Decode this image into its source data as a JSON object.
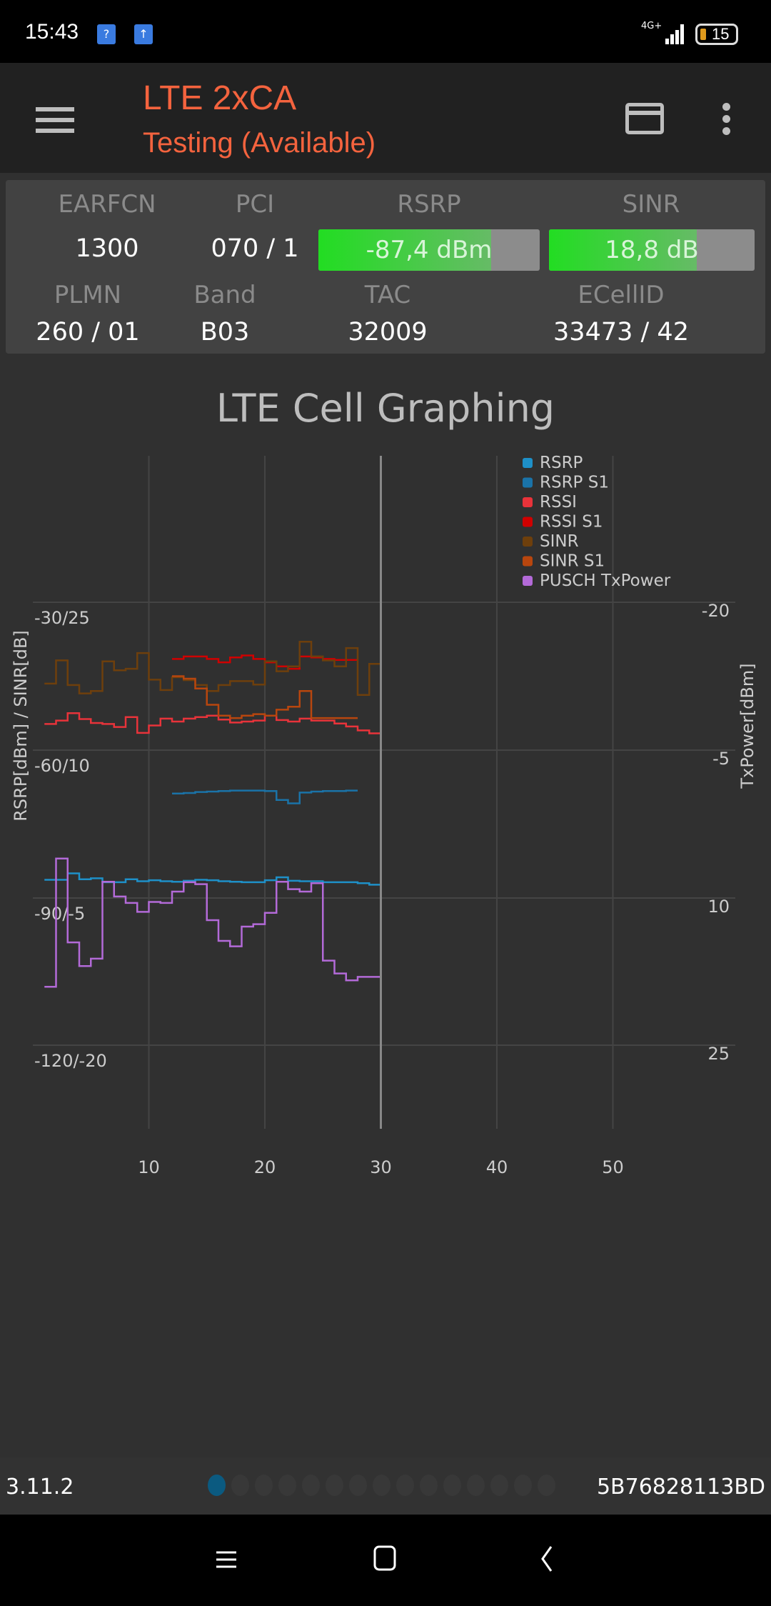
{
  "status": {
    "time": "15:43",
    "network": "4G+",
    "battery": "15"
  },
  "appbar": {
    "title": "LTE 2xCA",
    "subtitle": "Testing (Available)"
  },
  "cell": {
    "earfcn_label": "EARFCN",
    "earfcn": "1300",
    "pci_label": "PCI",
    "pci": "070 / 1",
    "rsrp_label": "RSRP",
    "rsrp": "-87,4 dBm",
    "rsrp_fill": 0.78,
    "sinr_label": "SINR",
    "sinr": "18,8 dB",
    "sinr_fill": 0.72,
    "plmn_label": "PLMN",
    "plmn": "260 / 01",
    "band_label": "Band",
    "band": "B03",
    "tac_label": "TAC",
    "tac": "32009",
    "ecellid_label": "ECellID",
    "ecellid": "33473 / 42"
  },
  "chart_data": {
    "type": "line",
    "title": "LTE Cell Graphing",
    "ylabel": "RSRP[dBm] / SINR[dB]",
    "y2label": "TxPower[dBm]",
    "xticks": [
      "10",
      "20",
      "30",
      "40",
      "50"
    ],
    "xlim": [
      0,
      59
    ],
    "yticks": [
      "-30/25",
      "-60/10",
      "-90/-5",
      "-120/-20"
    ],
    "y2ticks": [
      "-20",
      "-5",
      "10",
      "25"
    ],
    "grid": true,
    "legend": "top-right",
    "cursor_x": 30,
    "series": [
      {
        "name": "RSRP",
        "color": "#1e90c8",
        "axis": "rsrp",
        "x0": 1,
        "values": [
          -86.3,
          -86.3,
          -85.0,
          -86.2,
          -86.0,
          -86.8,
          -86.8,
          -86.2,
          -86.6,
          -86.4,
          -86.6,
          -86.7,
          -86.5,
          -86.3,
          -86.4,
          -86.6,
          -86.7,
          -86.8,
          -86.8,
          -86.4,
          -85.8,
          -86.5,
          -86.6,
          -86.6,
          -86.8,
          -86.8,
          -86.8,
          -87.0,
          -87.3,
          -87.6
        ]
      },
      {
        "name": "RSRP S1",
        "color": "#1a73a8",
        "axis": "rsrp",
        "x0": 12,
        "values": [
          -68.8,
          -68.7,
          -68.5,
          -68.4,
          -68.3,
          -68.2,
          -68.2,
          -68.2,
          -68.3,
          -70.1,
          -70.8,
          -68.6,
          -68.4,
          -68.3,
          -68.3,
          -68.2
        ]
      },
      {
        "name": "RSSI",
        "color": "#e8333a",
        "axis": "rsrp",
        "x0": 1,
        "values": [
          -54.7,
          -54,
          -52.5,
          -53.7,
          -54.5,
          -54.7,
          -55.3,
          -53.3,
          -56.5,
          -55,
          -53.6,
          -54.2,
          -53.6,
          -53.3,
          -53,
          -53.8,
          -54.4,
          -54.2,
          -54,
          -53,
          -53.9,
          -54.2,
          -53.6,
          -54,
          -54,
          -54.6,
          -55.2,
          -56,
          -56.6,
          -56.6
        ]
      },
      {
        "name": "RSSI S1",
        "color": "#d00000",
        "axis": "rsrp",
        "x0": 12,
        "values": [
          -41.5,
          -41,
          -41,
          -41.5,
          -42.2,
          -41.2,
          -40.8,
          -41.5,
          -42.2,
          -43,
          -43.5,
          -41,
          -41.2,
          -41.5,
          -41.7,
          -41.7
        ]
      },
      {
        "name": "SINR",
        "color": "#6e3f0c",
        "axis": "sinr",
        "x0": 1,
        "values": [
          16.75,
          19.1,
          16.6,
          15.75,
          16,
          19,
          18.1,
          18.25,
          19.85,
          17.15,
          16.1,
          17.4,
          17.1,
          16.6,
          16,
          16.6,
          17,
          17,
          16.65,
          19,
          18,
          18.5,
          21,
          19.5,
          19.1,
          18.5,
          20.35,
          15.6,
          18.75,
          18.75
        ]
      },
      {
        "name": "SINR S1",
        "color": "#b8460e",
        "axis": "sinr",
        "x0": 12,
        "values": [
          17.5,
          17.25,
          16.25,
          14.6,
          13.5,
          13.25,
          13.5,
          13.65,
          13.5,
          14.1,
          14.4,
          16,
          13.25,
          13.25,
          13.25,
          13.25
        ]
      },
      {
        "name": "PUSCH TxPower",
        "color": "#b36ad8",
        "axis": "tx",
        "x0": 1,
        "values": [
          19,
          6,
          14.5,
          16.9,
          16.15,
          8.35,
          9.85,
          10.5,
          11.4,
          10.4,
          10.5,
          9.35,
          8.4,
          8.6,
          12.25,
          14.35,
          14.9,
          12.9,
          12.65,
          11.5,
          8.35,
          9.1,
          9.35,
          8.5,
          16.35,
          17.65,
          18.35,
          18,
          18,
          18
        ]
      }
    ]
  },
  "footer": {
    "version": "3.11.2",
    "serial": "5B76828113BD",
    "pages": 15,
    "active_page": 0,
    "accent": "#0b5a80"
  }
}
